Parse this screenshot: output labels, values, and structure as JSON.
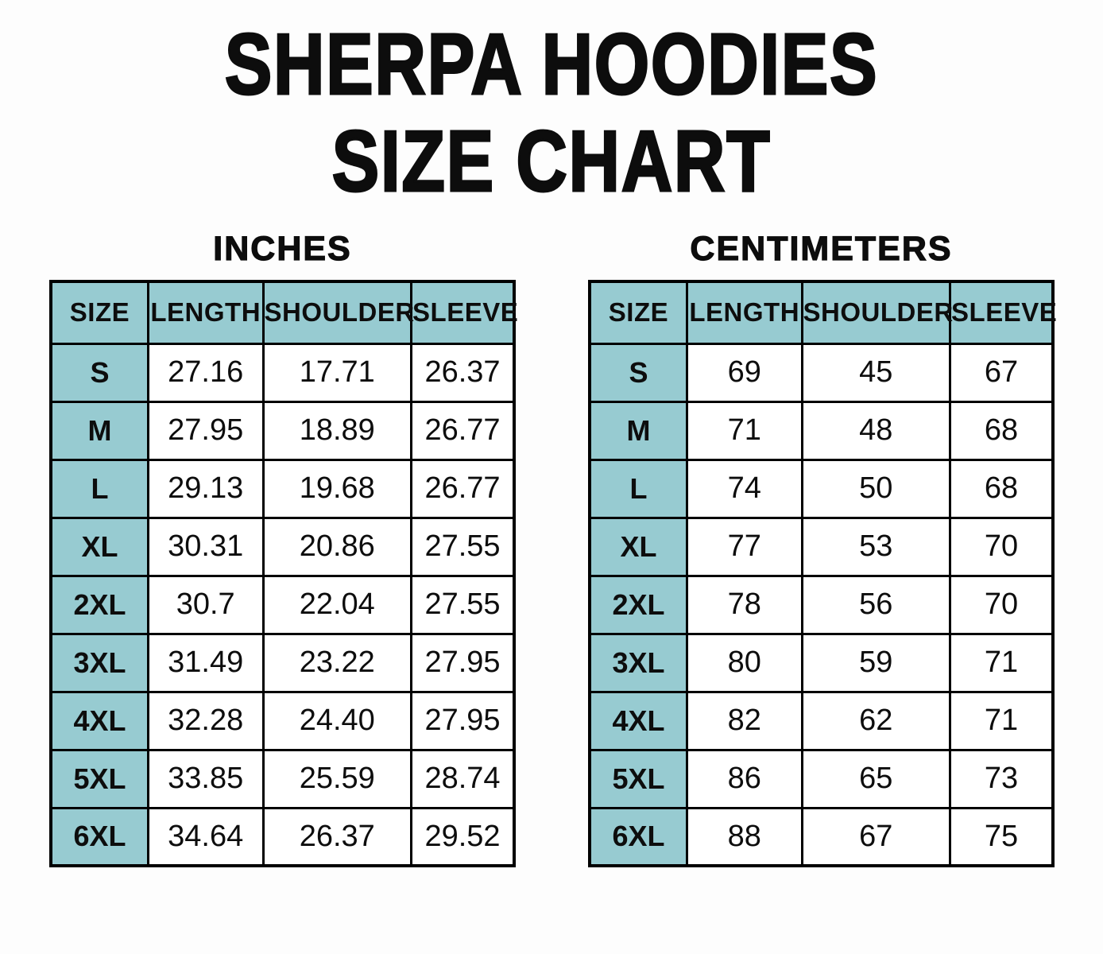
{
  "header": {
    "title_line1": "SHERPA HOODIES",
    "title_line2": "SIZE CHART"
  },
  "colors": {
    "page_background": "#fdfdfd",
    "header_fill": "#97cbd1",
    "table_border": "#000000",
    "text_color": "#0d0d0d"
  },
  "chart_data": [
    {
      "type": "table",
      "title": "INCHES",
      "columns": [
        "SIZE",
        "LENGTH",
        "SHOULDER",
        "SLEEVE"
      ],
      "column_widths_pct": [
        21,
        24.8,
        32,
        22.2
      ],
      "rows": [
        [
          "S",
          "27.16",
          "17.71",
          "26.37"
        ],
        [
          "M",
          "27.95",
          "18.89",
          "26.77"
        ],
        [
          "L",
          "29.13",
          "19.68",
          "26.77"
        ],
        [
          "XL",
          "30.31",
          "20.86",
          "27.55"
        ],
        [
          "2XL",
          "30.7",
          "22.04",
          "27.55"
        ],
        [
          "3XL",
          "31.49",
          "23.22",
          "27.95"
        ],
        [
          "4XL",
          "32.28",
          "24.40",
          "27.95"
        ],
        [
          "5XL",
          "33.85",
          "25.59",
          "28.74"
        ],
        [
          "6XL",
          "34.64",
          "26.37",
          "29.52"
        ]
      ]
    },
    {
      "type": "table",
      "title": "CENTIMETERS",
      "columns": [
        "SIZE",
        "LENGTH",
        "SHOULDER",
        "SLEEVE"
      ],
      "column_widths_pct": [
        21,
        24.8,
        32,
        22.2
      ],
      "rows": [
        [
          "S",
          "69",
          "45",
          "67"
        ],
        [
          "M",
          "71",
          "48",
          "68"
        ],
        [
          "L",
          "74",
          "50",
          "68"
        ],
        [
          "XL",
          "77",
          "53",
          "70"
        ],
        [
          "2XL",
          "78",
          "56",
          "70"
        ],
        [
          "3XL",
          "80",
          "59",
          "71"
        ],
        [
          "4XL",
          "82",
          "62",
          "71"
        ],
        [
          "5XL",
          "86",
          "65",
          "73"
        ],
        [
          "6XL",
          "88",
          "67",
          "75"
        ]
      ]
    }
  ]
}
